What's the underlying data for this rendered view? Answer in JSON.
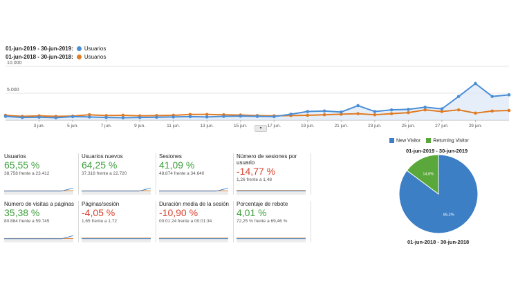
{
  "legend": {
    "range_current": "01-jun-2019 - 30-jun-2019:",
    "range_previous": "01-jun-2018 - 30-jun-2018:",
    "series_current": "Usuarios",
    "series_previous": "Usuarios"
  },
  "colors": {
    "current": "#4a8ed6",
    "previous": "#e07b24",
    "positive": "#3c9f3c",
    "negative": "#d9402b",
    "new_visitor": "#3d7fc5",
    "returning_visitor": "#5aa83b"
  },
  "chart_data": [
    {
      "type": "line",
      "y_ticks": [
        "10.000",
        "5.000"
      ],
      "ylim": [
        0,
        10000
      ],
      "x_labels": [
        "3 jun.",
        "5 jun.",
        "7 jun.",
        "9 jun.",
        "11 jun.",
        "13 jun.",
        "15 jun.",
        "17 jun.",
        "19 jun.",
        "21 jun.",
        "23 jun.",
        "25 jun.",
        "27 jun.",
        "29 jun."
      ],
      "series": [
        {
          "name": "Usuarios",
          "period": "01-jun-2019 - 30-jun-2019",
          "values": [
            700,
            500,
            550,
            450,
            650,
            600,
            500,
            450,
            500,
            550,
            600,
            650,
            600,
            700,
            750,
            700,
            650,
            1100,
            1600,
            1700,
            1500,
            2700,
            1600,
            1900,
            2000,
            2400,
            2100,
            4400,
            6800,
            4400,
            4700
          ]
        },
        {
          "name": "Usuarios",
          "period": "01-jun-2018 - 30-jun-2018",
          "values": [
            900,
            700,
            800,
            700,
            750,
            1000,
            850,
            900,
            800,
            850,
            900,
            1050,
            1050,
            1000,
            950,
            850,
            800,
            850,
            900,
            1000,
            1100,
            1200,
            1000,
            1200,
            1400,
            1900,
            1600,
            1900,
            1300,
            1700,
            1800
          ]
        }
      ]
    },
    {
      "type": "pie",
      "legend": [
        "New Visitor",
        "Returning Visitor"
      ],
      "title_top": "01-jun-2019 - 30-jun-2019",
      "title_bottom": "01-jun-2018 - 30-jun-2018",
      "slices": [
        {
          "name": "New Visitor",
          "value": 85.2,
          "label": "85,2%"
        },
        {
          "name": "Returning Visitor",
          "value": 14.8,
          "label": "14,8%"
        }
      ]
    }
  ],
  "metrics": [
    {
      "label": "Usuarios",
      "value": "65,55 %",
      "trend": "positive",
      "comparison": "38.758 frente a 23.412"
    },
    {
      "label": "Usuarios nuevos",
      "value": "64,25 %",
      "trend": "positive",
      "comparison": "37.318 frente a 22.720"
    },
    {
      "label": "Sesiones",
      "value": "41,09 %",
      "trend": "positive",
      "comparison": "48.874 frente a 34.640"
    },
    {
      "label": "Número de sesiones por usuario",
      "value": "-14,77 %",
      "trend": "negative",
      "comparison": "1,26 frente a 1,48"
    },
    {
      "label": "Número de visitas a páginas",
      "value": "35,38 %",
      "trend": "positive",
      "comparison": "80.884 frente a 59.745"
    },
    {
      "label": "Páginas/sesión",
      "value": "-4,05 %",
      "trend": "negative",
      "comparison": "1,65 frente a 1,72"
    },
    {
      "label": "Duración media de la sesión",
      "value": "-10,90 %",
      "trend": "negative",
      "comparison": "00:01:24 frente a 00:01:34"
    },
    {
      "label": "Porcentaje de rebote",
      "value": "4,01 %",
      "trend": "positive",
      "comparison": "72,25 % frente a 69,46 %"
    }
  ]
}
